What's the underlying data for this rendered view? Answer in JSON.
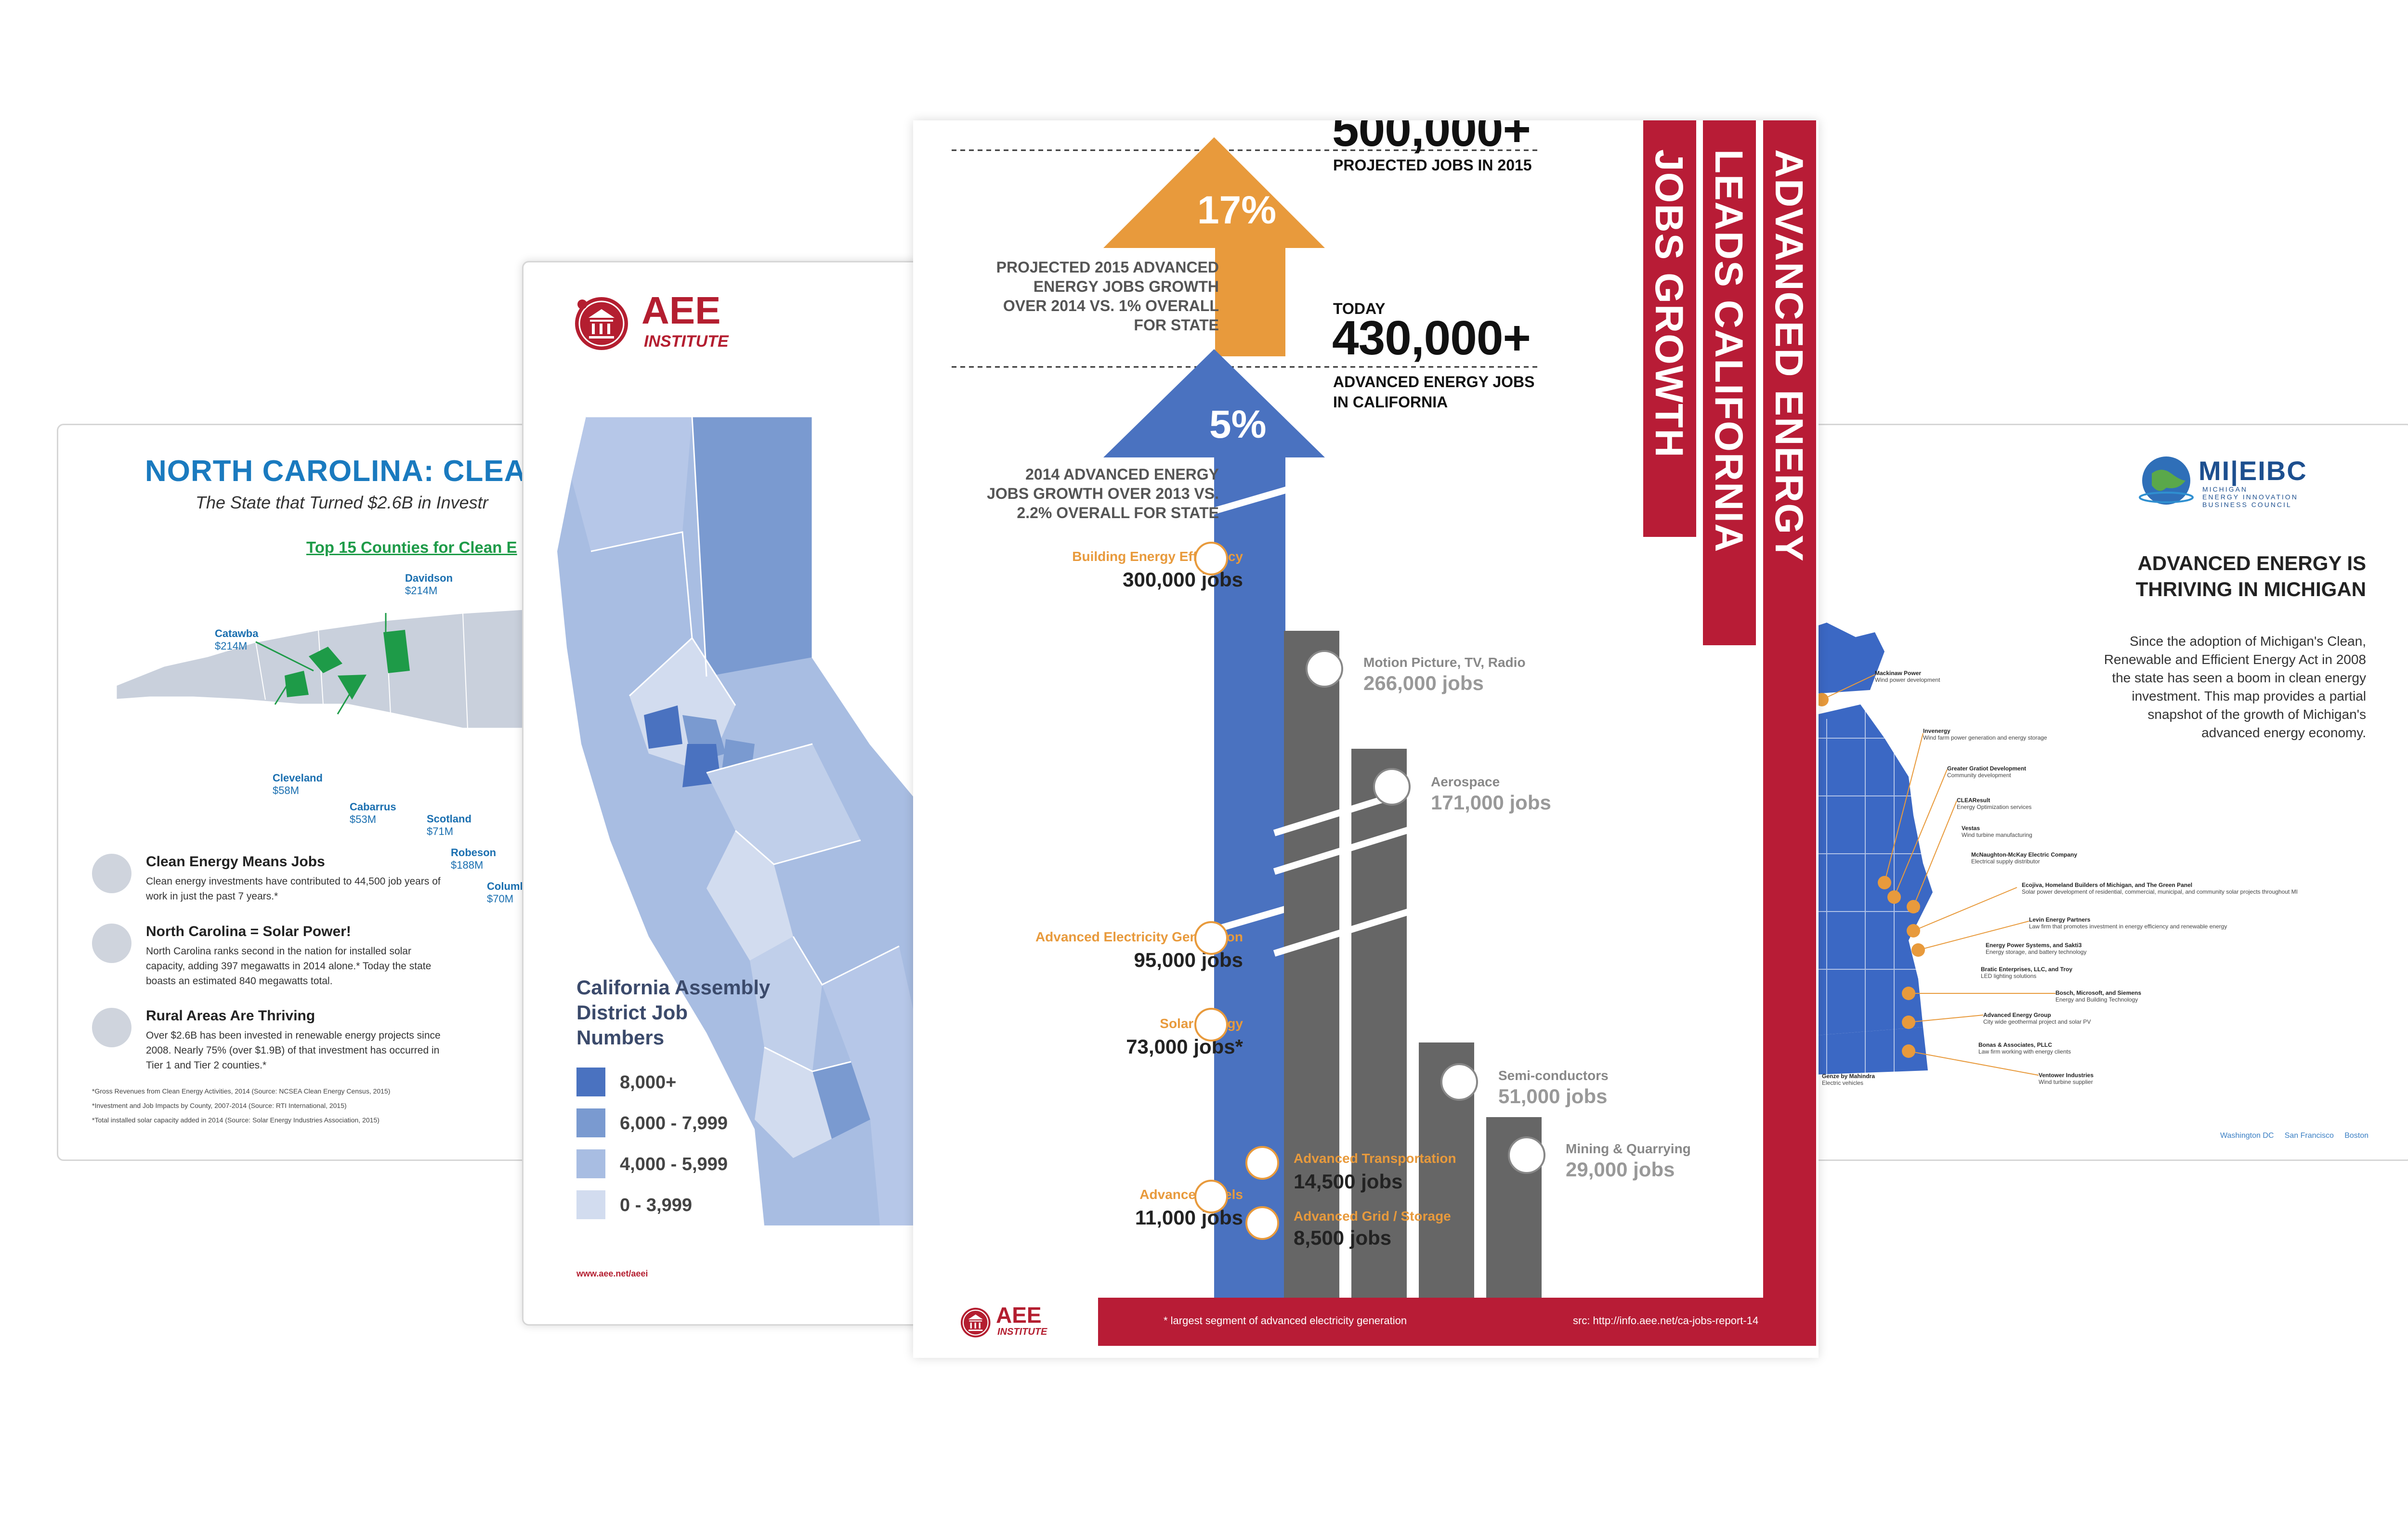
{
  "nc_card": {
    "title": "NORTH CAROLINA: CLEA",
    "subtitle": "The State that Turned $2.6B in Investr",
    "top15": "Top 15 Counties for Clean E",
    "counties": [
      {
        "name": "Davidson",
        "value": "$214M"
      },
      {
        "name": "Catawba",
        "value": "$214M"
      },
      {
        "name": "Cleveland",
        "value": "$58M"
      },
      {
        "name": "Cabarrus",
        "value": "$53M"
      },
      {
        "name": "Scotland",
        "value": "$71M"
      },
      {
        "name": "Robeson",
        "value": "$188M"
      },
      {
        "name": "Columb",
        "value": "$70M"
      }
    ],
    "items": [
      {
        "heading": "Clean Energy Means Jobs",
        "text": "Clean energy investments have contributed to 44,500 job years of work in just the past 7 years.*"
      },
      {
        "heading": "North Carolina = Solar Power!",
        "text": "North Carolina ranks second in the nation for installed solar capacity, adding 397 megawatts in 2014 alone.* Today the state boasts an estimated 840 megawatts total."
      },
      {
        "heading": "Rural Areas Are Thriving",
        "text": "Over $2.6B has been invested in renewable energy projects since 2008. Nearly 75% (over $1.9B) of that investment has occurred in Tier 1 and Tier 2 counties.*"
      }
    ],
    "footnotes": [
      "*Gross Revenues from Clean Energy Activities, 2014 (Source: NCSEA Clean Energy Census, 2015)",
      "*Investment and Job Impacts by County, 2007-2014 (Source: RTI International, 2015)",
      "*Total installed solar capacity added in 2014 (Source: Solar Energy Industries Association, 2015)"
    ],
    "colors": {
      "title": "#1a7abf",
      "accent": "#1e9b48"
    }
  },
  "ca_card": {
    "logo_aee": "AEE",
    "logo_institute": "INSTITUTE",
    "legend_title": "California Assembly District Job Numbers",
    "legend": [
      {
        "label": "8,000+",
        "color": "#4a72c0"
      },
      {
        "label": "6,000 - 7,999",
        "color": "#7a9ad0"
      },
      {
        "label": "4,000 - 5,999",
        "color": "#a8bde2"
      },
      {
        "label": "0 - 3,999",
        "color": "#d2dcef"
      }
    ],
    "url": "www.aee.net/aeei"
  },
  "center": {
    "top_number": "500,000+",
    "top_caption": "PROJECTED JOBS IN 2015",
    "today_label": "TODAY",
    "today_number": "430,000+",
    "today_caption_1": "ADVANCED ENERGY JOBS",
    "today_caption_2": "IN CALIFORNIA",
    "pct_17": "17%",
    "pct_5": "5%",
    "desc_2015": [
      "PROJECTED 2015 ADVANCED",
      "ENERGY JOBS GROWTH",
      "OVER 2014 VS. 1% OVERALL",
      "FOR STATE"
    ],
    "desc_2014": [
      "2014 ADVANCED ENERGY",
      "JOBS GROWTH OVER 2013 VS.",
      "2.2% OVERALL FOR STATE"
    ],
    "segments": [
      {
        "label": "Building Energy Efficiency",
        "value": "300,000 jobs"
      },
      {
        "label": "Advanced Electricity Generation",
        "value": "95,000 jobs"
      },
      {
        "label": "Solar Energy",
        "value": "73,000 jobs*"
      },
      {
        "label": "Advanced Fuels",
        "value": "11,000 jobs"
      },
      {
        "label": "Advanced Transportation",
        "value": "14,500 jobs"
      },
      {
        "label": "Advanced Grid / Storage",
        "value": "8,500 jobs"
      }
    ],
    "gray_segments": [
      {
        "label": "Motion Picture, TV, Radio",
        "value": "266,000 jobs"
      },
      {
        "label": "Aerospace",
        "value": "171,000 jobs"
      },
      {
        "label": "Semi-conductors",
        "value": "51,000 jobs"
      },
      {
        "label": "Mining & Quarrying",
        "value": "29,000 jobs"
      }
    ],
    "ribbons": [
      "ADVANCED ENERGY",
      "LEADS CALIFORNIA",
      "JOBS GROWTH"
    ],
    "footnote": "* largest segment of advanced electricity generation",
    "source": "src: http://info.aee.net/ca-jobs-report-14",
    "logo_aee": "AEE",
    "logo_institute": "INSTITUTE",
    "colors": {
      "blue": "#4a72c0",
      "orange": "#e89a3c",
      "red": "#b81c36",
      "gray": "#666666"
    }
  },
  "mi_card": {
    "logo": "MI|EIBC",
    "logo_sub": [
      "MICHIGAN",
      "ENERGY INNOVATION",
      "BUSINESS COUNCIL"
    ],
    "heading": [
      "ADVANCED ENERGY IS",
      "THRIVING IN MICHIGAN"
    ],
    "body": "Since the adoption of Michigan's Clean, Renewable and Efficient Energy Act in 2008 the state has seen a boom in clean energy investment. This map provides a partial snapshot of the growth of Michigan's advanced energy economy.",
    "companies": [
      {
        "name": "Mackinaw Power",
        "desc": "Wind power development"
      },
      {
        "name": "Invenergy",
        "desc": "Wind farm power generation and energy storage"
      },
      {
        "name": "Greater Gratiot Development",
        "desc": "Community development"
      },
      {
        "name": "CLEAResult",
        "desc": "Energy Optimization services"
      },
      {
        "name": "Vestas",
        "desc": "Wind turbine manufacturing"
      },
      {
        "name": "McNaughton-McKay Electric Company",
        "desc": "Electrical supply distributor"
      },
      {
        "name": "Ecojiva, Homeland Builders of Michigan, and The Green Panel",
        "desc": "Solar power development of residential, commercial, municipal, and community solar projects throughout MI"
      },
      {
        "name": "Levin Energy Partners",
        "desc": "Law firm that promotes investment in energy efficiency and renewable energy"
      },
      {
        "name": "Energy Power Systems, and Sakti3",
        "desc": "Energy storage, and battery technology"
      },
      {
        "name": "Bratic Enterprises, LLC, and Troy",
        "desc": "LED lighting solutions"
      },
      {
        "name": "Bosch, Microsoft, and Siemens",
        "desc": "Energy and Building Technology"
      },
      {
        "name": "Advanced Energy Group",
        "desc": "City wide geothermal project and solar PV"
      },
      {
        "name": "Bonas & Associates, PLLC",
        "desc": "Law firm working with energy clients"
      },
      {
        "name": "Ventower Industries",
        "desc": "Wind turbine supplier"
      },
      {
        "name": "Genze by Mahindra",
        "desc": "Electric vehicles"
      }
    ],
    "cities": [
      "Washington DC",
      "San Francisco",
      "Boston"
    ]
  }
}
